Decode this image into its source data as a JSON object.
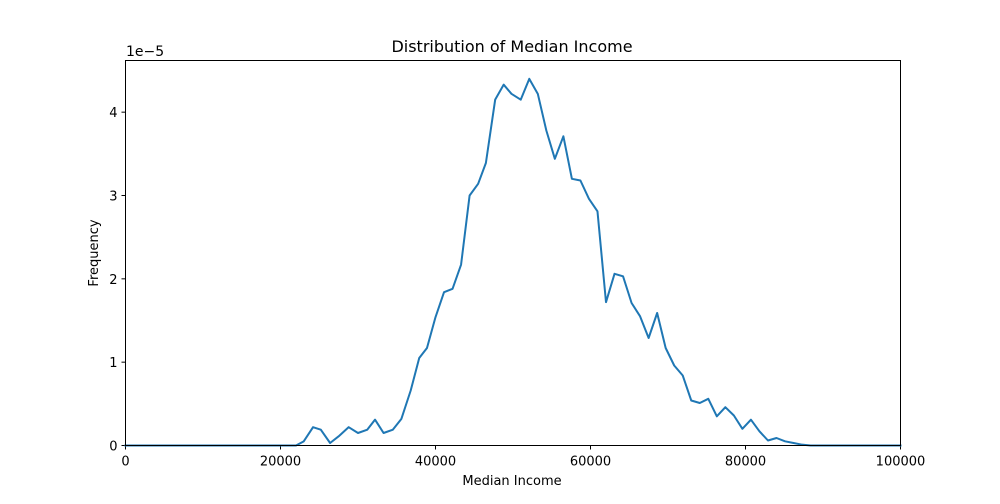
{
  "chart_data": {
    "type": "line",
    "title": "Distribution of Median Income",
    "xlabel": "Median Income",
    "ylabel": "Frequency",
    "y_scale_label": "1e−5",
    "xlim": [
      0,
      100000
    ],
    "ylim": [
      0,
      4.62
    ],
    "xticks": [
      0,
      20000,
      40000,
      60000,
      80000,
      100000
    ],
    "xtick_labels": [
      "0",
      "20000",
      "40000",
      "60000",
      "80000",
      "100000"
    ],
    "yticks": [
      0,
      1,
      2,
      3,
      4
    ],
    "ytick_labels": [
      "0",
      "1",
      "2",
      "3",
      "4"
    ],
    "grid": false,
    "series": [
      {
        "color": "#1f77b4",
        "points": [
          [
            0,
            0
          ],
          [
            2000,
            0
          ],
          [
            4000,
            0
          ],
          [
            6000,
            0
          ],
          [
            8000,
            0
          ],
          [
            10000,
            0
          ],
          [
            12000,
            0
          ],
          [
            14000,
            0
          ],
          [
            16000,
            0
          ],
          [
            18000,
            0
          ],
          [
            20000,
            0
          ],
          [
            21000,
            0
          ],
          [
            22000,
            0
          ],
          [
            23000,
            0.05
          ],
          [
            24200,
            0.22
          ],
          [
            25200,
            0.19
          ],
          [
            26400,
            0.03
          ],
          [
            27500,
            0.11
          ],
          [
            28800,
            0.22
          ],
          [
            30000,
            0.15
          ],
          [
            31200,
            0.19
          ],
          [
            32200,
            0.31
          ],
          [
            33300,
            0.15
          ],
          [
            34500,
            0.19
          ],
          [
            35600,
            0.32
          ],
          [
            36800,
            0.66
          ],
          [
            37900,
            1.05
          ],
          [
            38900,
            1.17
          ],
          [
            40000,
            1.54
          ],
          [
            41100,
            1.84
          ],
          [
            42200,
            1.88
          ],
          [
            43300,
            2.17
          ],
          [
            44400,
            3.0
          ],
          [
            45500,
            3.14
          ],
          [
            46500,
            3.39
          ],
          [
            47700,
            4.15
          ],
          [
            48800,
            4.33
          ],
          [
            49800,
            4.22
          ],
          [
            51000,
            4.15
          ],
          [
            52100,
            4.4
          ],
          [
            53200,
            4.22
          ],
          [
            54300,
            3.78
          ],
          [
            55400,
            3.44
          ],
          [
            56500,
            3.71
          ],
          [
            57600,
            3.2
          ],
          [
            58700,
            3.18
          ],
          [
            59800,
            2.96
          ],
          [
            60900,
            2.81
          ],
          [
            62000,
            1.72
          ],
          [
            63100,
            2.06
          ],
          [
            64200,
            2.03
          ],
          [
            65300,
            1.71
          ],
          [
            66400,
            1.55
          ],
          [
            67500,
            1.29
          ],
          [
            68600,
            1.59
          ],
          [
            69700,
            1.17
          ],
          [
            70800,
            0.96
          ],
          [
            71900,
            0.84
          ],
          [
            73000,
            0.54
          ],
          [
            74100,
            0.51
          ],
          [
            75200,
            0.56
          ],
          [
            76300,
            0.35
          ],
          [
            77400,
            0.46
          ],
          [
            78500,
            0.36
          ],
          [
            79600,
            0.2
          ],
          [
            80700,
            0.31
          ],
          [
            81800,
            0.17
          ],
          [
            82900,
            0.06
          ],
          [
            84000,
            0.09
          ],
          [
            85100,
            0.05
          ],
          [
            86200,
            0.03
          ],
          [
            87300,
            0.01
          ],
          [
            88400,
            0
          ],
          [
            90000,
            0
          ],
          [
            92000,
            0
          ],
          [
            94000,
            0
          ],
          [
            96000,
            0
          ],
          [
            98000,
            0
          ],
          [
            100000,
            0
          ]
        ]
      }
    ]
  }
}
